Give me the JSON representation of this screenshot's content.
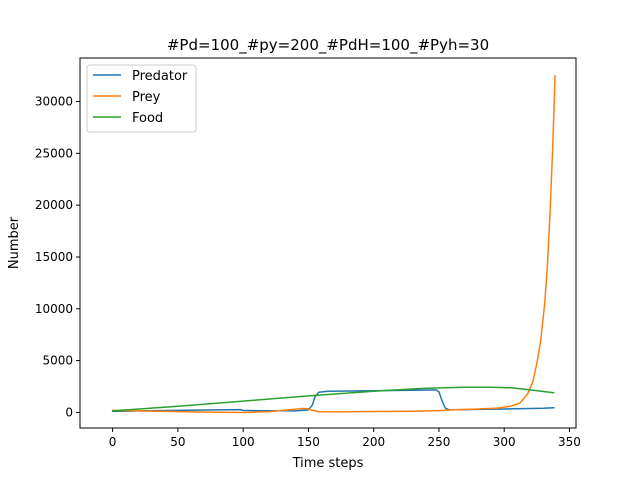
{
  "chart_data": {
    "type": "line",
    "title": "#Pd=100_#py=200_#PdH=100_#Pyh=30",
    "xlabel": "Time steps",
    "ylabel": "Number",
    "xlim": [
      -25,
      355
    ],
    "ylim": [
      -1500,
      34200
    ],
    "xticks": [
      0,
      50,
      100,
      150,
      200,
      250,
      300,
      350
    ],
    "yticks": [
      0,
      5000,
      10000,
      15000,
      20000,
      25000,
      30000
    ],
    "grid": false,
    "legend_position": "top-left",
    "series": [
      {
        "name": "Predator",
        "color": "#1f77b4",
        "points": [
          [
            0,
            100
          ],
          [
            20,
            150
          ],
          [
            50,
            200
          ],
          [
            80,
            250
          ],
          [
            98,
            280
          ],
          [
            100,
            200
          ],
          [
            120,
            160
          ],
          [
            140,
            150
          ],
          [
            150,
            250
          ],
          [
            153,
            700
          ],
          [
            155,
            1500
          ],
          [
            158,
            1950
          ],
          [
            165,
            2050
          ],
          [
            200,
            2100
          ],
          [
            230,
            2150
          ],
          [
            248,
            2180
          ],
          [
            250,
            2000
          ],
          [
            253,
            900
          ],
          [
            255,
            400
          ],
          [
            258,
            260
          ],
          [
            270,
            280
          ],
          [
            300,
            330
          ],
          [
            320,
            380
          ],
          [
            330,
            400
          ],
          [
            338,
            450
          ]
        ]
      },
      {
        "name": "Prey",
        "color": "#ff7f0e",
        "points": [
          [
            0,
            200
          ],
          [
            20,
            150
          ],
          [
            50,
            80
          ],
          [
            80,
            20
          ],
          [
            100,
            0
          ],
          [
            120,
            80
          ],
          [
            135,
            250
          ],
          [
            145,
            380
          ],
          [
            150,
            350
          ],
          [
            153,
            200
          ],
          [
            158,
            80
          ],
          [
            170,
            50
          ],
          [
            200,
            90
          ],
          [
            230,
            120
          ],
          [
            250,
            180
          ],
          [
            260,
            250
          ],
          [
            280,
            330
          ],
          [
            295,
            420
          ],
          [
            305,
            600
          ],
          [
            312,
            900
          ],
          [
            318,
            1800
          ],
          [
            322,
            3000
          ],
          [
            325,
            4700
          ],
          [
            328,
            7000
          ],
          [
            331,
            10500
          ],
          [
            333,
            14000
          ],
          [
            335,
            19000
          ],
          [
            337,
            25000
          ],
          [
            339,
            32500
          ]
        ]
      },
      {
        "name": "Food",
        "color": "#2ca02c",
        "points": [
          [
            0,
            150
          ],
          [
            50,
            600
          ],
          [
            100,
            1100
          ],
          [
            150,
            1600
          ],
          [
            200,
            2050
          ],
          [
            240,
            2330
          ],
          [
            270,
            2430
          ],
          [
            290,
            2440
          ],
          [
            305,
            2380
          ],
          [
            320,
            2180
          ],
          [
            330,
            2020
          ],
          [
            338,
            1900
          ]
        ]
      }
    ]
  }
}
